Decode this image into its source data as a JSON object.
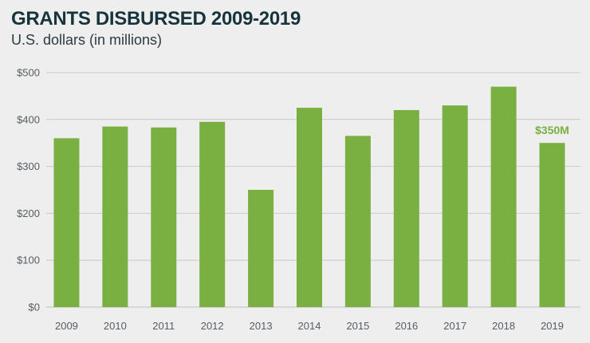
{
  "chart_data": {
    "type": "bar",
    "title": "GRANTS DISBURSED 2009-2019",
    "subtitle": "U.S. dollars (in millions)",
    "categories": [
      "2009",
      "2010",
      "2011",
      "2012",
      "2013",
      "2014",
      "2015",
      "2016",
      "2017",
      "2018",
      "2019"
    ],
    "values": [
      360,
      385,
      383,
      395,
      250,
      425,
      365,
      420,
      430,
      470,
      350
    ],
    "ylim": [
      0,
      500
    ],
    "yticks": [
      0,
      100,
      200,
      300,
      400,
      500
    ],
    "ytick_labels": [
      "$0",
      "$100",
      "$200",
      "$300",
      "$400",
      "$500"
    ],
    "grid": true,
    "bar_color": "#7aaf41",
    "annotations": [
      {
        "category": "2019",
        "text": "$350M",
        "color": "#7aaf41"
      }
    ]
  }
}
